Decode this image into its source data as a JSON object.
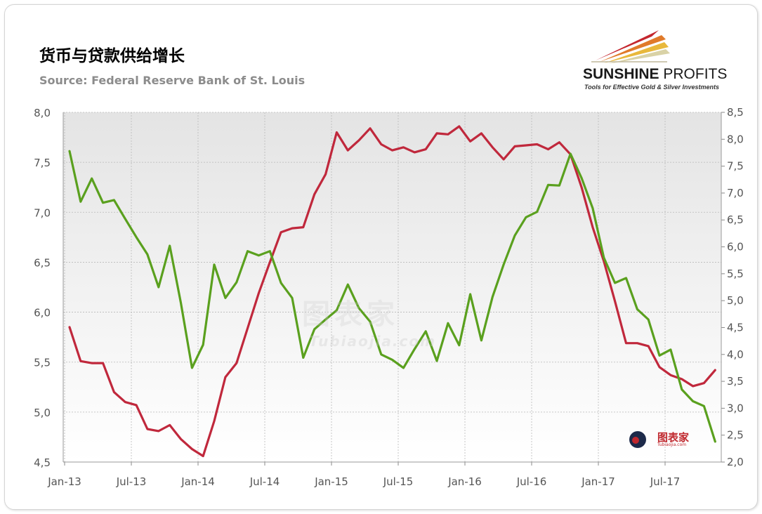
{
  "header": {
    "title": "货币与贷款供给增长",
    "source": "Source: Federal Reserve Bank of St. Louis"
  },
  "logo": {
    "name_bold": "SUNSHINE",
    "name_light": " PROFITS",
    "tagline": "Tools for Effective Gold & Silver Investments"
  },
  "watermark": {
    "small_text": "图表家",
    "small_sub": "Tubiaojia.com",
    "big_text": "图表家",
    "big_sub": "Tubiaojia.com"
  },
  "chart_data": {
    "type": "line",
    "x_tick_labels": [
      "Jan-13",
      "Jul-13",
      "Jan-14",
      "Jul-14",
      "Jan-15",
      "Jul-15",
      "Jan-16",
      "Jul-16",
      "Jan-17",
      "Jul-17"
    ],
    "x_start": "Jan-13",
    "x_end": "Dec-17",
    "y_left": {
      "min": 4.5,
      "max": 8.0,
      "ticks": [
        "4,5",
        "5,0",
        "5,5",
        "6,0",
        "6,5",
        "7,0",
        "7,5",
        "8,0"
      ]
    },
    "y_right": {
      "min": 2.0,
      "max": 8.5,
      "ticks": [
        "2,0",
        "2,5",
        "3,0",
        "3,5",
        "4,0",
        "4,5",
        "5,0",
        "5,5",
        "6,0",
        "6,5",
        "7,0",
        "7,5",
        "8,0",
        "8,5"
      ]
    },
    "grid": true,
    "series": [
      {
        "axis": "left",
        "color": "#c0283c",
        "values": [
          5.85,
          5.51,
          5.49,
          5.49,
          5.2,
          5.1,
          5.07,
          4.83,
          4.81,
          4.87,
          4.73,
          4.63,
          4.56,
          4.91,
          5.35,
          5.49,
          5.84,
          6.19,
          6.5,
          6.8,
          6.84,
          6.85,
          7.18,
          7.38,
          7.8,
          7.62,
          7.72,
          7.84,
          7.68,
          7.62,
          7.65,
          7.6,
          7.63,
          7.79,
          7.78,
          7.86,
          7.71,
          7.79,
          7.65,
          7.53,
          7.66,
          7.67,
          7.68,
          7.63,
          7.7,
          7.58,
          7.25,
          6.85,
          6.51,
          6.11,
          5.69,
          5.69,
          5.66,
          5.45,
          5.37,
          5.33,
          5.26,
          5.29,
          5.42
        ]
      },
      {
        "axis": "right",
        "color": "#5aa01e",
        "values": [
          7.78,
          6.84,
          7.27,
          6.82,
          6.87,
          6.52,
          6.18,
          5.86,
          5.25,
          6.02,
          4.96,
          3.75,
          4.18,
          5.67,
          5.05,
          5.34,
          5.92,
          5.84,
          5.92,
          5.33,
          5.05,
          3.94,
          4.47,
          4.65,
          4.82,
          5.3,
          4.86,
          4.61,
          4.0,
          3.9,
          3.75,
          4.1,
          4.43,
          3.88,
          4.58,
          4.17,
          5.12,
          4.26,
          5.07,
          5.67,
          6.21,
          6.55,
          6.65,
          7.15,
          7.14,
          7.73,
          7.28,
          6.72,
          5.8,
          5.33,
          5.42,
          4.84,
          4.65,
          3.98,
          4.09,
          3.35,
          3.13,
          3.04,
          2.38
        ]
      }
    ]
  }
}
